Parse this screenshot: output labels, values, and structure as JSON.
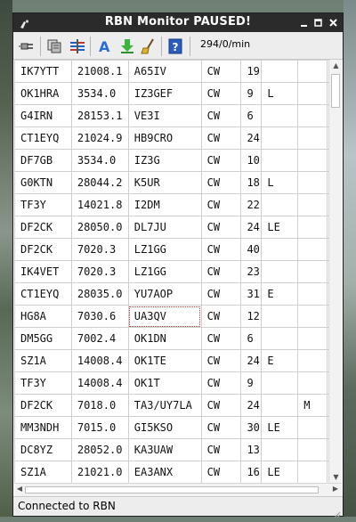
{
  "window": {
    "title": "RBN Monitor  PAUSED!"
  },
  "toolbar": {
    "icons": [
      "disconnect-icon",
      "copy-icon",
      "columns-icon",
      "font-icon",
      "download-icon",
      "clear-icon",
      "help-icon"
    ],
    "rate": "294/0/min"
  },
  "table": {
    "rows": [
      [
        "IK7YTT",
        "21008.1",
        "A65IV",
        "CW",
        "19",
        "",
        ""
      ],
      [
        "OK1HRA",
        "3534.0",
        "IZ3GEF",
        "CW",
        "9",
        "L",
        ""
      ],
      [
        "G4IRN",
        "28153.1",
        "VE3I",
        "CW",
        "6",
        "",
        ""
      ],
      [
        "CT1EYQ",
        "21024.9",
        "HB9CRO",
        "CW",
        "24",
        "",
        ""
      ],
      [
        "DF7GB",
        "3534.0",
        "IZ3G",
        "CW",
        "10",
        "",
        ""
      ],
      [
        "G0KTN",
        "28044.2",
        "K5UR",
        "CW",
        "18",
        "L",
        ""
      ],
      [
        "TF3Y",
        "14021.8",
        "I2DM",
        "CW",
        "22",
        "",
        ""
      ],
      [
        "DF2CK",
        "28050.0",
        "DL7JU",
        "CW",
        "24",
        "LE",
        ""
      ],
      [
        "DF2CK",
        "7020.3",
        "LZ1GG",
        "CW",
        "40",
        "",
        ""
      ],
      [
        "IK4VET",
        "7020.3",
        "LZ1GG",
        "CW",
        "23",
        "",
        ""
      ],
      [
        "CT1EYQ",
        "28035.0",
        "YU7AOP",
        "CW",
        "31",
        "E",
        ""
      ],
      [
        "HG8A",
        "7030.6",
        "UA3QV",
        "CW",
        "12",
        "",
        ""
      ],
      [
        "DM5GG",
        "7002.4",
        "OK1DN",
        "CW",
        "6",
        "",
        ""
      ],
      [
        "SZ1A",
        "14008.4",
        "OK1TE",
        "CW",
        "24",
        "E",
        ""
      ],
      [
        "TF3Y",
        "14008.4",
        "OK1T",
        "CW",
        "9",
        "",
        ""
      ],
      [
        "DF2CK",
        "7018.0",
        "TA3/UY7LA",
        "CW",
        "24",
        "",
        "M"
      ],
      [
        "MM3NDH",
        "7015.0",
        "GI5KSO",
        "CW",
        "30",
        "LE",
        ""
      ],
      [
        "DC8YZ",
        "28052.0",
        "KA3UAW",
        "CW",
        "13",
        "",
        ""
      ],
      [
        "SZ1A",
        "21021.0",
        "EA3ANX",
        "CW",
        "16",
        "LE",
        ""
      ]
    ]
  },
  "status": {
    "text": "Connected to RBN"
  }
}
